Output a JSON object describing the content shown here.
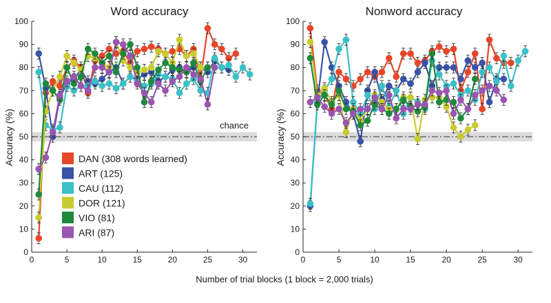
{
  "figure": {
    "xlabel": "Number of trial blocks (1 block = 2,000 trials)"
  },
  "colors": {
    "DAN": "#e8462a",
    "ART": "#3a53a8",
    "CAU": "#3cc0c8",
    "DOR": "#c8cc30",
    "VIO": "#1e8a3c",
    "ARI": "#9a55b0"
  },
  "legend": [
    {
      "key": "DAN",
      "label": "DAN (308 words learned)"
    },
    {
      "key": "ART",
      "label": "ART (125)"
    },
    {
      "key": "CAU",
      "label": "CAU (112)"
    },
    {
      "key": "DOR",
      "label": "DOR (121)"
    },
    {
      "key": "VIO",
      "label": "VIO (81)"
    },
    {
      "key": "ARI",
      "label": "ARI (87)"
    }
  ],
  "chart_data": [
    {
      "type": "line",
      "title": "Word accuracy",
      "xlabel": "",
      "ylabel": "Accuracy (%)",
      "xlim": [
        0,
        32
      ],
      "ylim": [
        0,
        100
      ],
      "xticks": [
        "0",
        "5",
        "10",
        "15",
        "20",
        "25",
        "30"
      ],
      "yticks": [
        "0",
        "10",
        "20",
        "30",
        "40",
        "50",
        "60",
        "70",
        "80",
        "90",
        "100"
      ],
      "chance": {
        "label": "chance",
        "value": 50,
        "band": [
          48,
          52
        ]
      },
      "series": [
        {
          "name": "DAN",
          "x": [
            1,
            2,
            3,
            4,
            5,
            6,
            7,
            8,
            9,
            10,
            11,
            12,
            13,
            14,
            15,
            16,
            17,
            18,
            19,
            20,
            21,
            22,
            23,
            24,
            25,
            26,
            27,
            28,
            29
          ],
          "y": [
            6,
            69,
            74,
            72,
            80,
            83,
            80,
            69,
            83,
            85,
            88,
            86,
            87,
            82,
            87,
            88,
            89,
            88,
            86,
            87,
            88,
            85,
            88,
            75,
            97,
            90,
            88,
            84,
            86
          ]
        },
        {
          "name": "ART",
          "x": [
            1,
            2,
            3,
            4,
            5,
            6,
            7,
            8,
            9,
            10,
            11,
            12,
            13,
            14,
            15,
            16,
            17,
            18,
            19,
            20,
            21,
            22,
            23,
            24,
            25,
            26,
            27,
            28
          ],
          "y": [
            86,
            71,
            50,
            67,
            73,
            75,
            79,
            74,
            73,
            75,
            78,
            80,
            73,
            76,
            75,
            77,
            78,
            74,
            76,
            79,
            80,
            78,
            80,
            80,
            78,
            83,
            80,
            79
          ]
        },
        {
          "name": "CAU",
          "x": [
            1,
            2,
            3,
            4,
            5,
            6,
            7,
            8,
            9,
            10,
            11,
            12,
            13,
            14,
            15,
            16,
            17,
            18,
            19,
            20,
            21,
            22,
            23,
            24,
            25,
            26,
            27,
            28,
            29,
            30,
            31
          ],
          "y": [
            78,
            55,
            53,
            54,
            72,
            70,
            72,
            72,
            74,
            72,
            73,
            71,
            73,
            76,
            74,
            72,
            73,
            77,
            76,
            75,
            69,
            73,
            75,
            70,
            69,
            84,
            80,
            81,
            76,
            80,
            77
          ]
        },
        {
          "name": "DOR",
          "x": [
            1,
            2,
            3,
            4,
            5,
            6,
            7,
            8,
            9,
            10,
            11,
            12,
            13,
            14,
            15,
            16,
            17,
            18,
            19,
            20,
            21,
            22,
            23,
            24,
            25,
            26
          ],
          "y": [
            15,
            61,
            70,
            76,
            85,
            82,
            79,
            85,
            84,
            82,
            80,
            91,
            83,
            80,
            78,
            79,
            80,
            87,
            86,
            82,
            92,
            85,
            86,
            80,
            80,
            80
          ]
        },
        {
          "name": "VIO",
          "x": [
            1,
            2,
            3,
            4,
            5,
            6,
            7,
            8,
            9,
            10,
            11,
            12,
            13,
            14,
            15,
            16,
            17,
            18,
            19,
            20,
            21,
            22,
            23,
            24,
            25
          ],
          "y": [
            25,
            73,
            70,
            66,
            80,
            73,
            76,
            88,
            86,
            82,
            85,
            78,
            86,
            90,
            80,
            65,
            74,
            79,
            82,
            80,
            79,
            78,
            82,
            74,
            80
          ]
        },
        {
          "name": "ARI",
          "x": [
            1,
            2,
            3,
            4,
            5,
            6,
            7,
            8,
            9,
            10,
            11,
            12,
            13,
            14,
            15,
            16,
            17,
            18,
            19,
            20,
            21,
            22,
            23,
            24,
            25,
            26
          ],
          "y": [
            36,
            41,
            52,
            68,
            74,
            76,
            72,
            70,
            80,
            80,
            78,
            91,
            90,
            85,
            73,
            69,
            65,
            73,
            70,
            74,
            76,
            80,
            77,
            75,
            64,
            80
          ]
        }
      ]
    },
    {
      "type": "line",
      "title": "Nonword accuracy",
      "xlabel": "",
      "ylabel": "Accuracy (%)",
      "xlim": [
        0,
        32
      ],
      "ylim": [
        0,
        100
      ],
      "xticks": [
        "0",
        "5",
        "10",
        "15",
        "20",
        "25",
        "30"
      ],
      "yticks": [
        "0",
        "10",
        "20",
        "30",
        "40",
        "50",
        "60",
        "70",
        "80",
        "90",
        "100"
      ],
      "chance": {
        "label": "",
        "value": 50,
        "band": [
          48,
          52
        ]
      },
      "series": [
        {
          "name": "DAN",
          "x": [
            1,
            2,
            3,
            4,
            5,
            6,
            7,
            8,
            9,
            10,
            11,
            12,
            13,
            14,
            15,
            16,
            17,
            18,
            19,
            20,
            21,
            22,
            23,
            24,
            25,
            26,
            27,
            28,
            29
          ],
          "y": [
            97,
            70,
            68,
            62,
            78,
            75,
            72,
            75,
            78,
            76,
            78,
            84,
            76,
            86,
            86,
            82,
            83,
            87,
            89,
            87,
            88,
            70,
            78,
            86,
            62,
            92,
            84,
            82,
            82
          ]
        },
        {
          "name": "ART",
          "x": [
            1,
            2,
            3,
            4,
            5,
            6,
            7,
            8,
            9,
            10,
            11,
            12,
            13,
            14,
            15,
            16,
            17,
            18,
            19,
            20,
            21,
            22,
            23,
            24,
            25,
            26,
            27,
            28
          ],
          "y": [
            20,
            65,
            91,
            80,
            72,
            65,
            60,
            48,
            70,
            78,
            66,
            72,
            70,
            75,
            73,
            78,
            82,
            72,
            80,
            80,
            80,
            75,
            83,
            80,
            82,
            65,
            75,
            75
          ]
        },
        {
          "name": "CAU",
          "x": [
            1,
            2,
            3,
            4,
            5,
            6,
            7,
            8,
            9,
            10,
            11,
            12,
            13,
            14,
            15,
            16,
            17,
            18,
            19,
            20,
            21,
            22,
            23,
            24,
            25,
            26,
            27,
            28,
            29,
            30,
            31
          ],
          "y": [
            21,
            65,
            70,
            75,
            88,
            92,
            65,
            60,
            68,
            62,
            72,
            63,
            70,
            60,
            67,
            65,
            62,
            83,
            77,
            72,
            73,
            68,
            70,
            66,
            78,
            80,
            74,
            85,
            72,
            83,
            87
          ]
        },
        {
          "name": "DOR",
          "x": [
            1,
            2,
            3,
            4,
            5,
            6,
            7,
            8,
            9,
            10,
            11,
            12,
            13,
            14,
            15,
            16,
            17,
            18,
            19,
            20,
            21,
            22,
            23,
            24
          ],
          "y": [
            91,
            68,
            71,
            65,
            68,
            52,
            62,
            57,
            62,
            68,
            65,
            62,
            62,
            67,
            67,
            49,
            66,
            67,
            67,
            63,
            54,
            50,
            53,
            55
          ]
        },
        {
          "name": "VIO",
          "x": [
            1,
            2,
            3,
            4,
            5,
            6,
            7,
            8,
            9,
            10,
            11,
            12,
            13,
            14,
            15,
            16,
            17,
            18,
            19,
            20,
            21,
            22,
            23,
            24
          ],
          "y": [
            84,
            64,
            68,
            64,
            70,
            62,
            61,
            55,
            57,
            64,
            62,
            60,
            62,
            66,
            63,
            61,
            63,
            86,
            65,
            66,
            65,
            58,
            62,
            75
          ]
        },
        {
          "name": "ARI",
          "x": [
            1,
            2,
            3,
            4,
            5,
            6,
            7,
            8,
            9,
            10,
            11,
            12,
            13,
            14,
            15,
            16,
            17,
            18,
            19,
            20,
            21,
            22,
            23,
            24,
            25,
            26,
            27,
            28
          ],
          "y": [
            65,
            67,
            63,
            60,
            62,
            56,
            60,
            62,
            62,
            67,
            62,
            68,
            58,
            62,
            62,
            64,
            64,
            70,
            69,
            70,
            60,
            66,
            62,
            68,
            70,
            72,
            70,
            66
          ]
        }
      ]
    }
  ]
}
